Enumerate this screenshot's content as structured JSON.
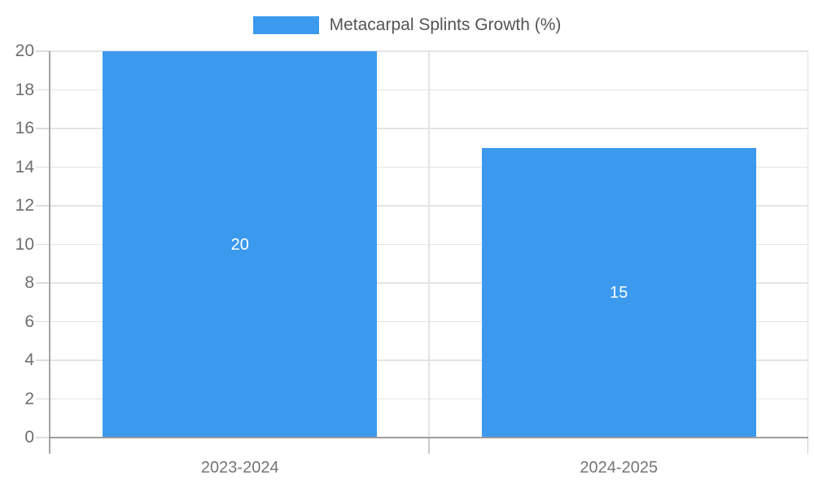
{
  "chart_data": {
    "type": "bar",
    "title": "Metacarpal Splints Growth (%)",
    "categories": [
      "2023-2024",
      "2024-2025"
    ],
    "series": [
      {
        "name": "Metacarpal Splints Growth (%)",
        "color": "#3b99ee",
        "values": [
          20,
          15
        ],
        "data_labels": [
          "20",
          "15"
        ]
      }
    ],
    "xlabel": "",
    "ylabel": "",
    "ylim": [
      0,
      20
    ],
    "ytick_step": 2,
    "yticks": [
      0,
      2,
      4,
      6,
      8,
      10,
      12,
      14,
      16,
      18,
      20
    ],
    "grid": true,
    "legend_position": "top-center",
    "bar_group_width_ratio": 0.724,
    "styles": {
      "bar_color": "#3b99ee",
      "grid_color": "#e4e4e4",
      "axis_line_color": "#9e9e9e",
      "tick_label_color": "#757575",
      "legend_text_color": "#555555",
      "data_label_color": "#ffffff",
      "background": "#ffffff"
    }
  },
  "legend": {
    "entries": [
      {
        "label": "Metacarpal Splints Growth (%)",
        "color": "#3b99ee"
      }
    ]
  }
}
